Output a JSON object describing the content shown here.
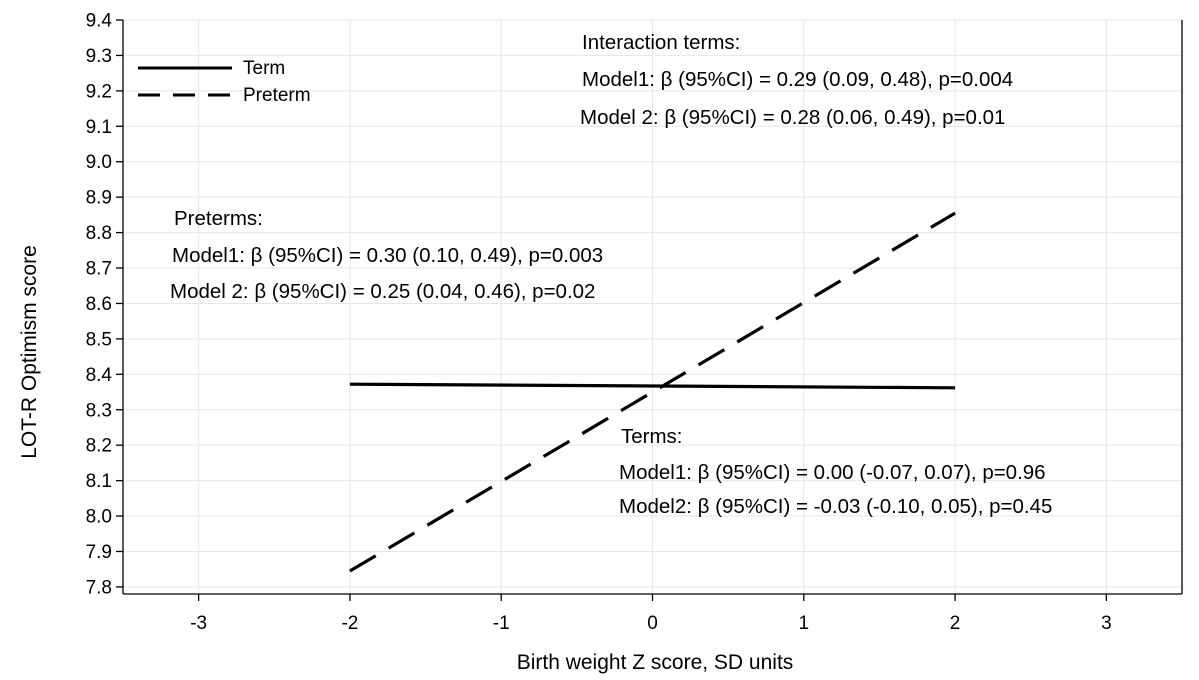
{
  "chart_data": {
    "type": "line",
    "xlabel": "Birth weight Z score, SD units",
    "ylabel": "LOT-R Optimism score",
    "xlim": [
      -3.5,
      3.5
    ],
    "ylim": [
      7.78,
      9.4
    ],
    "x_ticks": [
      "-3",
      "-2",
      "-1",
      "0",
      "1",
      "2",
      "3"
    ],
    "y_ticks": [
      "7.8",
      "7.9",
      "8.0",
      "8.1",
      "8.2",
      "8.3",
      "8.4",
      "8.5",
      "8.6",
      "8.7",
      "8.8",
      "8.9",
      "9.0",
      "9.1",
      "9.2",
      "9.3",
      "9.4"
    ],
    "grid": true,
    "legend_position": "top-left",
    "series": [
      {
        "name": "Term",
        "style": "solid",
        "x": [
          -2,
          2
        ],
        "y": [
          8.372,
          8.362
        ]
      },
      {
        "name": "Preterm",
        "style": "dashed",
        "x": [
          -2,
          2
        ],
        "y": [
          7.845,
          8.855
        ]
      }
    ],
    "annotations": {
      "interaction": {
        "title": "Interaction terms:",
        "line1": "Model1: β (95%CI) = 0.29 (0.09, 0.48), p=0.004",
        "line2": "Model 2: β (95%CI) = 0.28 (0.06, 0.49), p=0.01"
      },
      "preterms": {
        "title": "Preterms:",
        "line1": "Model1: β (95%CI) = 0.30 (0.10, 0.49), p=0.003",
        "line2": "Model 2: β (95%CI) = 0.25 (0.04, 0.46), p=0.02"
      },
      "terms": {
        "title": "Terms:",
        "line1": "Model1: β (95%CI) = 0.00 (-0.07, 0.07), p=0.96",
        "line2": "Model2: β (95%CI) = -0.03 (-0.10, 0.05), p=0.45"
      }
    },
    "colors": {
      "line": "#000000",
      "grid": "#e6e6e6",
      "background": "#ffffff"
    }
  }
}
